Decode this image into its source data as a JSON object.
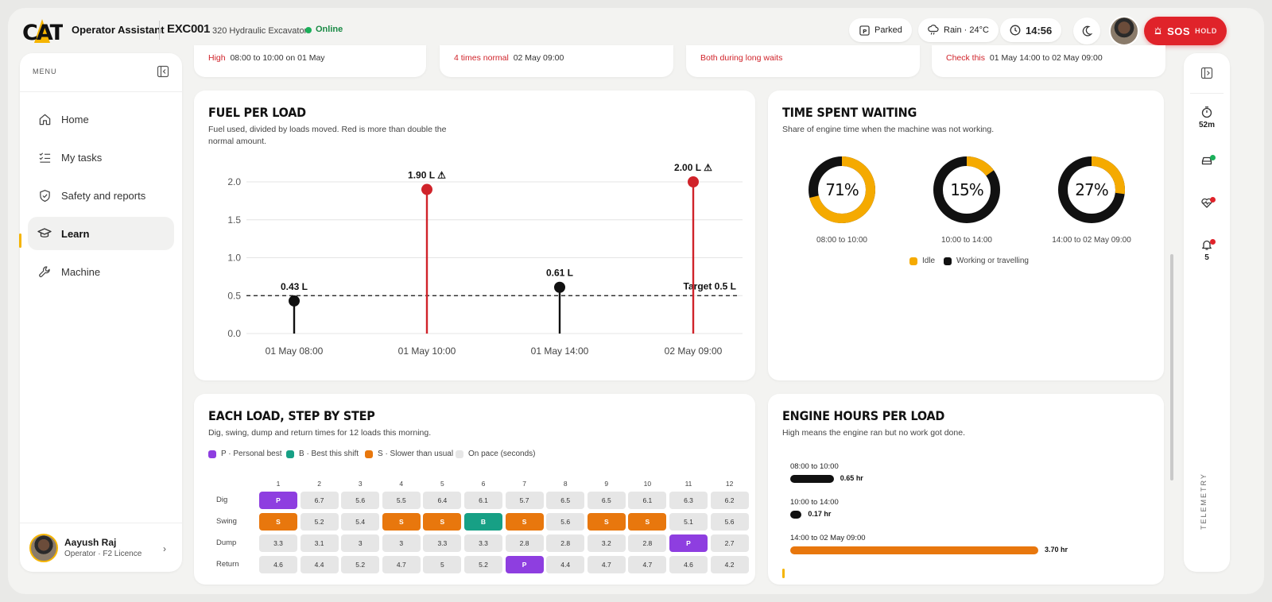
{
  "app": {
    "title": "Operator Assistant",
    "machine_id": "EXC001",
    "machine_model": "320 Hydraulic Excavator",
    "status": "Online"
  },
  "topbar": {
    "parked": "Parked",
    "weather": "Rain · 24°C",
    "time": "14:56",
    "sos": "SOS",
    "hold": "HOLD"
  },
  "menu": {
    "label": "MENU",
    "items": [
      {
        "label": "Home",
        "icon": "home-icon"
      },
      {
        "label": "My tasks",
        "icon": "tasks-icon"
      },
      {
        "label": "Safety and reports",
        "icon": "shield-icon"
      },
      {
        "label": "Learn",
        "icon": "graduation-cap-icon"
      },
      {
        "label": "Machine",
        "icon": "wrench-icon"
      }
    ]
  },
  "user": {
    "name": "Aayush Raj",
    "role": "Operator · F2 Licence"
  },
  "rail": {
    "timer": "52m",
    "alerts": "5",
    "label": "TELEMETRY"
  },
  "strips": [
    {
      "flag": "High",
      "text": "08:00 to 10:00 on 01 May"
    },
    {
      "flag": "4 times normal",
      "text": "02 May 09:00"
    },
    {
      "flag": "Both during long waits",
      "text": ""
    },
    {
      "flag": "Check this",
      "text": "01 May 14:00 to 02 May 09:00"
    }
  ],
  "fuel": {
    "title": "FUEL PER LOAD",
    "subtitle": "Fuel used, divided by loads moved. Red is more than double the normal amount.",
    "target_label": "Target 0.5 L"
  },
  "waiting": {
    "title": "TIME SPENT WAITING",
    "subtitle": "Share of engine time when the machine was not working.",
    "donuts": [
      {
        "pct": "71%",
        "value": 0.71,
        "label": "08:00 to 10:00"
      },
      {
        "pct": "15%",
        "value": 0.15,
        "label": "10:00 to 14:00"
      },
      {
        "pct": "27%",
        "value": 0.27,
        "label": "14:00 to 02 May 09:00"
      }
    ],
    "legend": {
      "idle": "Idle",
      "working": "Working or travelling"
    },
    "colors": {
      "idle": "#f5aa00",
      "working": "#111111"
    }
  },
  "steps": {
    "title": "EACH LOAD, STEP BY STEP",
    "subtitle": "Dig, swing, dump and return times for 12 loads this morning.",
    "legend": [
      "P · Personal best",
      "B · Best this shift",
      "S · Slower than usual",
      "On pace (seconds)"
    ],
    "columns": [
      "1",
      "2",
      "3",
      "4",
      "5",
      "6",
      "7",
      "8",
      "9",
      "10",
      "11",
      "12"
    ],
    "rows": [
      {
        "label": "Dig",
        "cells": [
          "P",
          "6.7",
          "5.6",
          "5.5",
          "6.4",
          "6.1",
          "5.7",
          "6.5",
          "6.5",
          "6.1",
          "6.3",
          "6.2"
        ]
      },
      {
        "label": "Swing",
        "cells": [
          "S",
          "5.2",
          "5.4",
          "S",
          "S",
          "B",
          "S",
          "5.6",
          "S",
          "S",
          "5.1",
          "5.6"
        ]
      },
      {
        "label": "Dump",
        "cells": [
          "3.3",
          "3.1",
          "3",
          "3",
          "3.3",
          "3.3",
          "2.8",
          "2.8",
          "3.2",
          "2.8",
          "P",
          "2.7"
        ]
      },
      {
        "label": "Return",
        "cells": [
          "4.6",
          "4.4",
          "5.2",
          "4.7",
          "5",
          "5.2",
          "P",
          "4.4",
          "4.7",
          "4.7",
          "4.6",
          "4.2"
        ]
      }
    ]
  },
  "engine": {
    "title": "ENGINE HOURS PER LOAD",
    "subtitle": "High means the engine ran but no work got done.",
    "bars": [
      {
        "label": "08:00 to 10:00",
        "value": 0.65,
        "text": "0.65 hr",
        "color": "#111111"
      },
      {
        "label": "10:00 to 14:00",
        "value": 0.17,
        "text": "0.17 hr",
        "color": "#111111"
      },
      {
        "label": "14:00 to 02 May 09:00",
        "value": 3.7,
        "text": "3.70 hr",
        "color": "#e8770d"
      }
    ]
  },
  "chart_data": {
    "type": "scatter",
    "title": "FUEL PER LOAD",
    "categories": [
      "01 May 08:00",
      "01 May 10:00",
      "01 May 14:00",
      "02 May 09:00"
    ],
    "values": [
      0.43,
      1.9,
      0.61,
      2.0
    ],
    "data_labels": [
      "0.43 L",
      "1.90 L ⚠",
      "0.61 L",
      "2.00 L ⚠"
    ],
    "flagged": [
      false,
      true,
      false,
      true
    ],
    "colors": {
      "normal": "#111111",
      "high": "#d0232a"
    },
    "target": 0.5,
    "yticks": [
      "0.0",
      "0.5",
      "1.0",
      "1.5",
      "2.0"
    ],
    "ylim": [
      0,
      2.0
    ],
    "grid": true
  }
}
